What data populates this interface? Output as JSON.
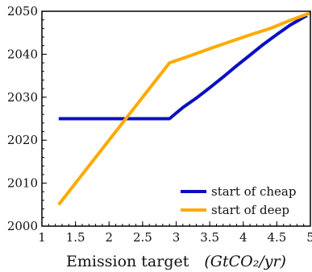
{
  "chart_data": {
    "type": "line",
    "xlabel_prefix": "Emission target",
    "xlabel_unit": "(GtCO₂/yr)",
    "ylabel": "",
    "xlim": [
      1,
      5
    ],
    "ylim": [
      2000,
      2050
    ],
    "x_ticks": [
      "1",
      "1.5",
      "2",
      "2.5",
      "3",
      "3.5",
      "4",
      "4.5",
      "5"
    ],
    "y_ticks": [
      "2000",
      "2010",
      "2020",
      "2030",
      "2040",
      "2050"
    ],
    "legend_position": "lower-right",
    "grid": false,
    "series": [
      {
        "name": "start of cheap",
        "color": "#0b0fbf",
        "points": [
          [
            1.25,
            2025
          ],
          [
            2.9,
            2025
          ],
          [
            3.1,
            2027.6
          ],
          [
            3.3,
            2029.8
          ],
          [
            3.5,
            2032.2
          ],
          [
            3.7,
            2034.7
          ],
          [
            3.9,
            2037.3
          ],
          [
            4.1,
            2039.8
          ],
          [
            4.3,
            2042.3
          ],
          [
            4.5,
            2044.6
          ],
          [
            4.7,
            2046.8
          ],
          [
            4.9,
            2048.6
          ],
          [
            4.95,
            2049
          ]
        ]
      },
      {
        "name": "start of deep",
        "color": "#ffaa00",
        "points": [
          [
            1.25,
            2005
          ],
          [
            2.9,
            2038
          ],
          [
            3.2,
            2039.6
          ],
          [
            3.5,
            2041.3
          ],
          [
            3.8,
            2042.9
          ],
          [
            4.1,
            2044.5
          ],
          [
            4.4,
            2046
          ],
          [
            4.7,
            2047.9
          ],
          [
            5.0,
            2049.6
          ]
        ]
      }
    ]
  }
}
